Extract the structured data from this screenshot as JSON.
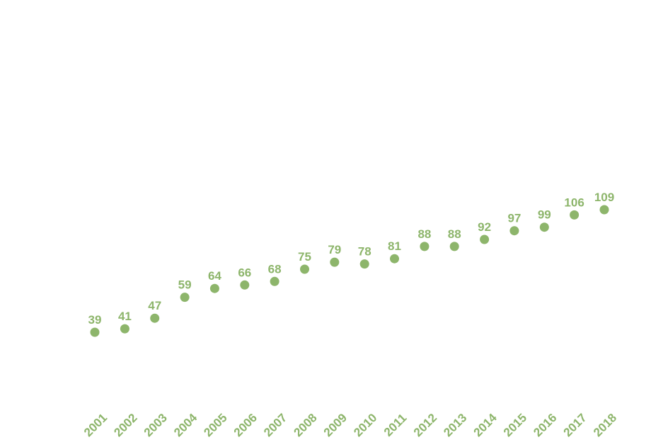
{
  "chart_data": {
    "type": "scatter",
    "title": "",
    "xlabel": "",
    "ylabel": "",
    "grid": false,
    "legend": "none",
    "colors": {
      "point": "#8db56b",
      "label": "#8db56b"
    },
    "x": [
      "2001",
      "2002",
      "2003",
      "2004",
      "2005",
      "2006",
      "2007",
      "2008",
      "2009",
      "2010",
      "2011",
      "2012",
      "2013",
      "2014",
      "2015",
      "2016",
      "2017",
      "2018"
    ],
    "values": [
      39,
      41,
      47,
      59,
      64,
      66,
      68,
      75,
      79,
      78,
      81,
      88,
      88,
      92,
      97,
      99,
      106,
      109
    ],
    "data_labels": [
      "39",
      "41",
      "47",
      "59",
      "64",
      "66",
      "68",
      "75",
      "79",
      "78",
      "81",
      "88",
      "88",
      "92",
      "97",
      "99",
      "106",
      "109"
    ]
  }
}
